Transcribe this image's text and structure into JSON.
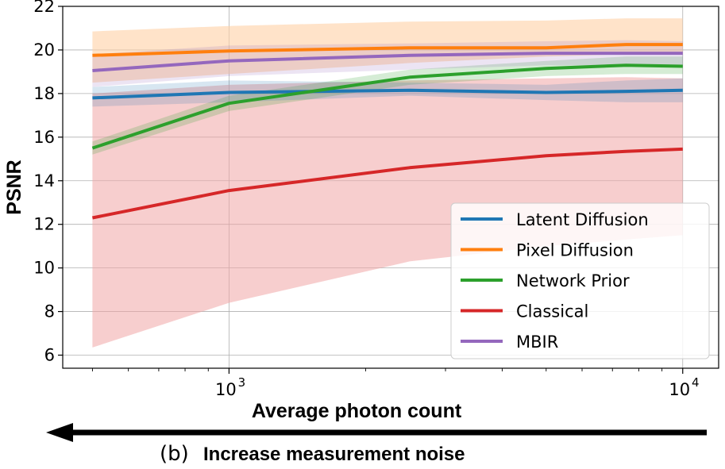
{
  "chart_data": {
    "type": "line",
    "title": "",
    "xlabel": "Average photon count",
    "ylabel": "PSNR",
    "xscale": "log",
    "xlim": [
      430,
      12000
    ],
    "ylim": [
      5.4,
      22
    ],
    "grid": true,
    "legend_position": "lower-right",
    "x": [
      500,
      1000,
      2500,
      5000,
      7500,
      10000
    ],
    "yticks": [
      "6",
      "8",
      "10",
      "12",
      "14",
      "16",
      "18",
      "20",
      "22"
    ],
    "xticks": [
      {
        "value": 1000,
        "base": "10",
        "exp": "3"
      },
      {
        "value": 10000,
        "base": "10",
        "exp": "4"
      }
    ],
    "series": [
      {
        "name": "Latent Diffusion",
        "color": "#1f77b4",
        "values": [
          17.8,
          18.05,
          18.15,
          18.05,
          18.1,
          18.15
        ],
        "lower": [
          17.4,
          17.6,
          17.9,
          17.7,
          17.6,
          17.6
        ],
        "upper": [
          18.3,
          18.6,
          18.5,
          18.4,
          18.6,
          18.7
        ]
      },
      {
        "name": "Pixel Diffusion",
        "color": "#ff7f0e",
        "values": [
          19.75,
          19.95,
          20.1,
          20.1,
          20.25,
          20.25
        ],
        "lower": [
          18.5,
          18.9,
          19.4,
          19.7,
          19.8,
          19.8
        ],
        "upper": [
          20.85,
          21.1,
          21.3,
          21.35,
          21.45,
          21.45
        ]
      },
      {
        "name": "Network Prior",
        "color": "#2ca02c",
        "values": [
          15.5,
          17.55,
          18.75,
          19.15,
          19.3,
          19.25
        ],
        "lower": [
          15.2,
          17.2,
          18.4,
          18.8,
          18.9,
          18.9
        ],
        "upper": [
          15.8,
          17.9,
          19.1,
          19.5,
          19.7,
          19.7
        ]
      },
      {
        "name": "Classical",
        "color": "#d62728",
        "values": [
          12.3,
          13.55,
          14.6,
          15.15,
          15.35,
          15.45
        ],
        "lower": [
          6.35,
          8.4,
          10.3,
          11.0,
          11.3,
          11.5
        ],
        "upper": [
          18.0,
          18.4,
          18.6,
          18.7,
          18.75,
          18.7
        ]
      },
      {
        "name": "MBIR",
        "color": "#9467bd",
        "values": [
          19.05,
          19.5,
          19.75,
          19.85,
          19.85,
          19.85
        ],
        "lower": [
          18.3,
          18.8,
          19.1,
          19.3,
          19.3,
          19.3
        ],
        "upper": [
          19.8,
          20.2,
          20.3,
          20.4,
          20.45,
          20.4
        ]
      }
    ],
    "band_colors": {
      "Latent Diffusion": "#1f77b4",
      "Pixel Diffusion": "#ffd0a5",
      "Network Prior": "#2ca02c",
      "Classical": "#f0a6a6",
      "MBIR": "#9467bd"
    }
  },
  "caption": {
    "letter": "(b)",
    "text": "Increase measurement noise",
    "arrow_color": "#000000"
  }
}
